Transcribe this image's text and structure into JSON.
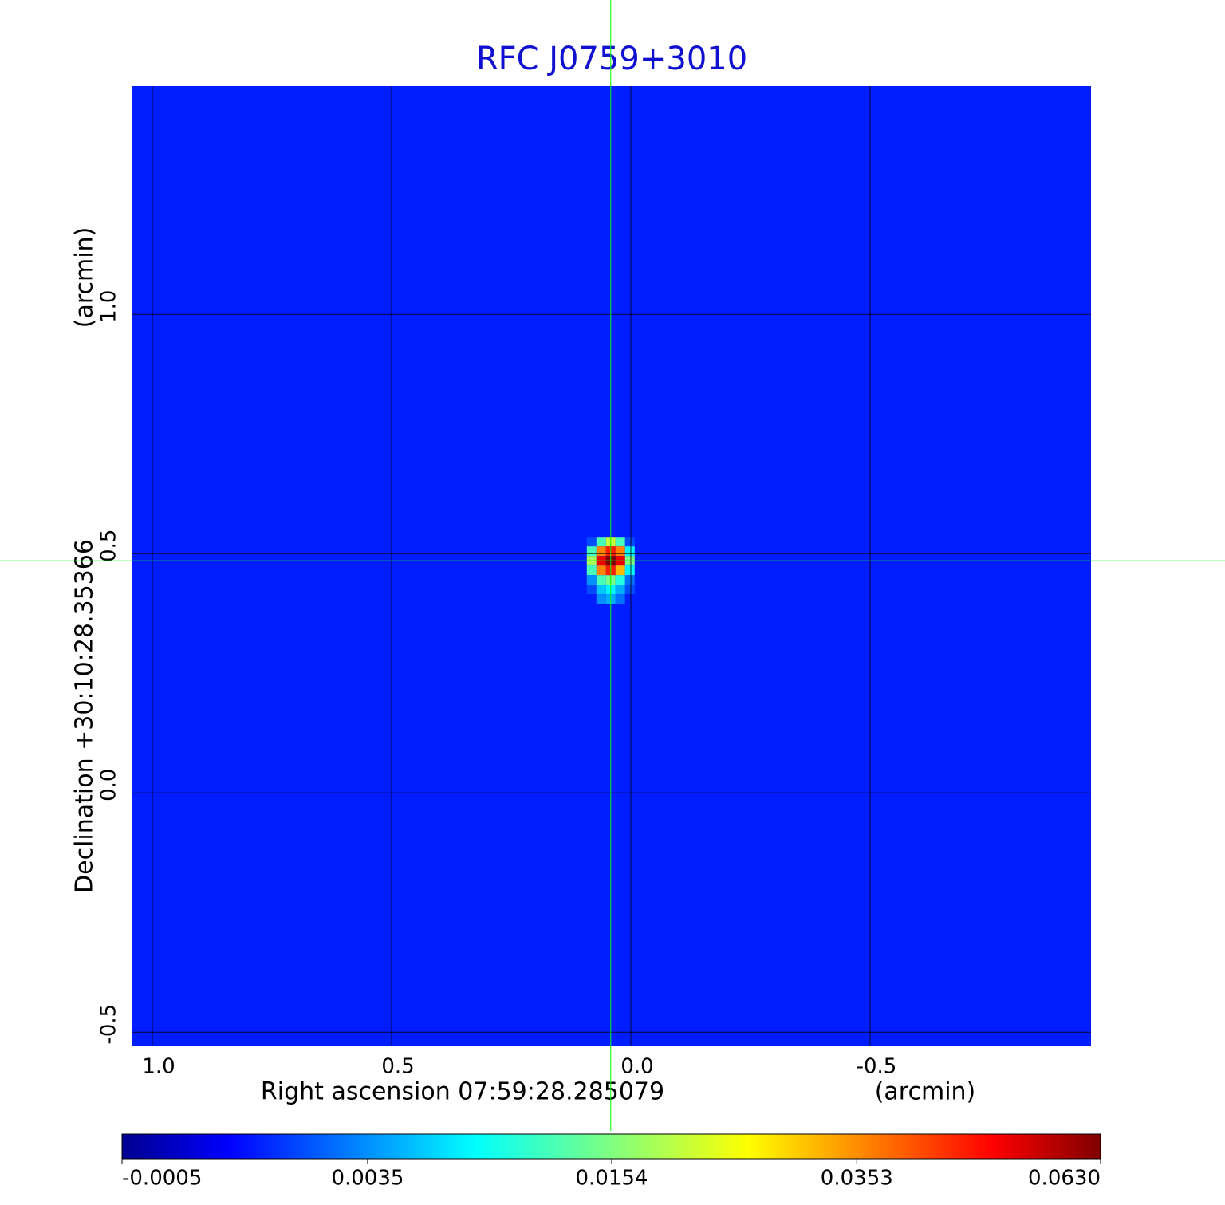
{
  "chart_data": {
    "type": "heatmap",
    "title": "RFC J0759+3010",
    "title_color": "#1010d0",
    "xlabel": "Right ascension  07:59:28.285079",
    "xunit": "(arcmin)",
    "ylabel": "Declination  +30:10:28.35366",
    "yunit": "(arcmin)",
    "xlim": [
      1.0417,
      -0.9617
    ],
    "ylim": [
      -0.528,
      1.477
    ],
    "xticks": [
      {
        "value": 1,
        "label": "1.0"
      },
      0.5,
      {
        "value": 0,
        "label": "0.0"
      },
      -0.5
    ],
    "yticks": [
      {
        "value": 1,
        "label": "1.0"
      },
      0.5,
      {
        "value": 0,
        "label": "0.0"
      },
      -0.5
    ],
    "grid": true,
    "grid_color": "#000000",
    "colormap": "jet",
    "color_scale": "sqrt",
    "clim": [
      -0.0005,
      0.063
    ],
    "colorbar_ticks": [
      -0.0005,
      0.0035,
      0.0154,
      0.0353,
      {
        "value": 0.063,
        "label": "0.0630"
      }
    ],
    "background": 0.001,
    "pixels": {
      "x": [
        0.082,
        0.062,
        0.042,
        0.022,
        0.002
      ],
      "y": [
        0.525,
        0.505,
        0.485,
        0.465,
        0.445,
        0.425,
        0.405
      ],
      "values": [
        [
          0.002,
          0.012,
          0.02,
          0.012,
          0.002
        ],
        [
          0.012,
          0.035,
          0.045,
          0.035,
          0.008
        ],
        [
          0.018,
          0.05,
          0.063,
          0.05,
          0.015
        ],
        [
          0.012,
          0.035,
          0.045,
          0.03,
          0.008
        ],
        [
          0.004,
          0.012,
          0.015,
          0.01,
          0.003
        ],
        [
          0.002,
          0.006,
          0.008,
          0.005,
          0.002
        ],
        [
          0.001,
          0.004,
          0.005,
          0.003,
          0.001
        ]
      ]
    },
    "crosshair": {
      "x": 0.042,
      "y": 0.485,
      "color": "#00ff00"
    }
  }
}
